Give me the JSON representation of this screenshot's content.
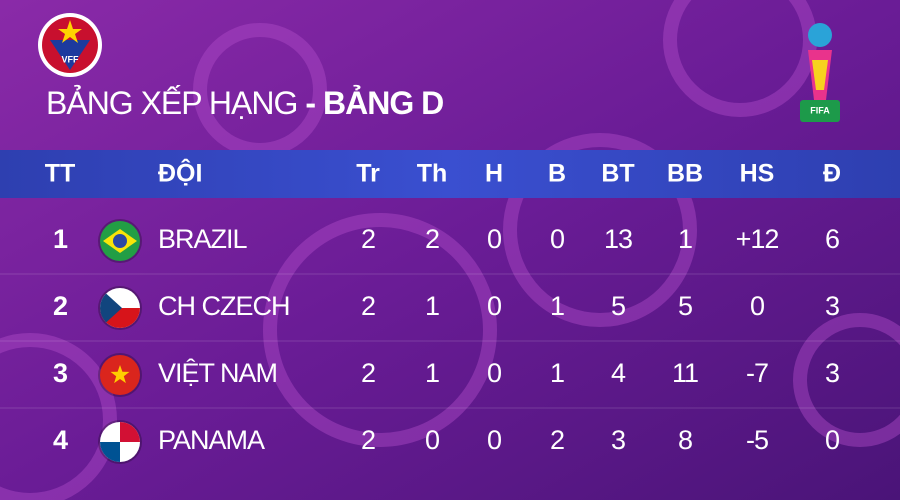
{
  "logos": {
    "left": "VFF",
    "right": "FIFA"
  },
  "header": {
    "title": "BẢNG XẾP HẠNG",
    "separator": "-",
    "group": "BẢNG D"
  },
  "table": {
    "columns": [
      "TT",
      "ĐỘI",
      "Tr",
      "Th",
      "H",
      "B",
      "BT",
      "BB",
      "HS",
      "Đ"
    ],
    "rows": [
      [
        1,
        "BRAZIL",
        2,
        2,
        0,
        0,
        13,
        1,
        "+12",
        6
      ],
      [
        2,
        "CH CZECH",
        2,
        1,
        0,
        1,
        5,
        5,
        0,
        3
      ],
      [
        3,
        "VIỆT NAM",
        2,
        1,
        0,
        1,
        4,
        11,
        -7,
        3
      ],
      [
        4,
        "PANAMA",
        2,
        0,
        0,
        2,
        3,
        8,
        -5,
        0
      ]
    ]
  }
}
